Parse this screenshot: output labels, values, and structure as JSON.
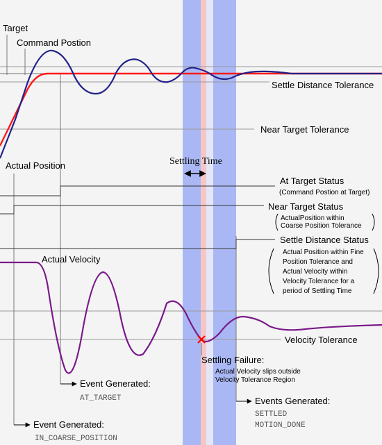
{
  "labels": {
    "target": "Target",
    "command_position": "Command Postion",
    "settle_distance_tolerance": "Settle Distance Tolerance",
    "near_target_tolerance": "Near Target Tolerance",
    "actual_position": "Actual Position",
    "settling_time": "Settling Time",
    "at_target_status": "At Target Status",
    "at_target_desc": "(Command Postion at Target)",
    "near_target_status": "Near Target Status",
    "near_target_desc_1": "ActualPosition within",
    "near_target_desc_2": "Coarse Position Tolerance",
    "settle_distance_status": "Settle Distance Status",
    "settle_desc_1": "Actual Position within Fine",
    "settle_desc_2": "Position Tolerance and",
    "settle_desc_3": "Actual Velocity within",
    "settle_desc_4": "Velocity Tolerance for a",
    "settle_desc_5": "period of Settling Time",
    "actual_velocity": "Actual Velocity",
    "velocity_tolerance": "Velocity Tolerance",
    "settling_failure": "Settling Failure:",
    "settling_failure_desc_1": "Actual Velocity slips outside",
    "settling_failure_desc_2": "Velocity Tolerance Region",
    "event_at_target_title": "Event Generated:",
    "event_at_target_code": "AT_TARGET",
    "event_coarse_title": "Event Generated:",
    "event_coarse_code": "IN_COARSE_POSITION",
    "events_settled_title": "Events Generated:",
    "events_settled_code_1": "SETTLED",
    "events_settled_code_2": "MOTION_DONE"
  },
  "colors": {
    "background": "#f4f4f4",
    "settling_band": "#a9b8f4",
    "failure_band": "#f6c6c6",
    "command_position": "#ff1a1a",
    "actual_position": "#22228a",
    "actual_velocity": "#7a1a8a",
    "failure_marker": "#ff0000",
    "guide_line": "#666666"
  },
  "icons": {
    "settling_time_arrow": "double-headed-arrow-icon",
    "failure_marker": "x-mark-icon",
    "callout_arrow": "arrow-right-icon"
  }
}
